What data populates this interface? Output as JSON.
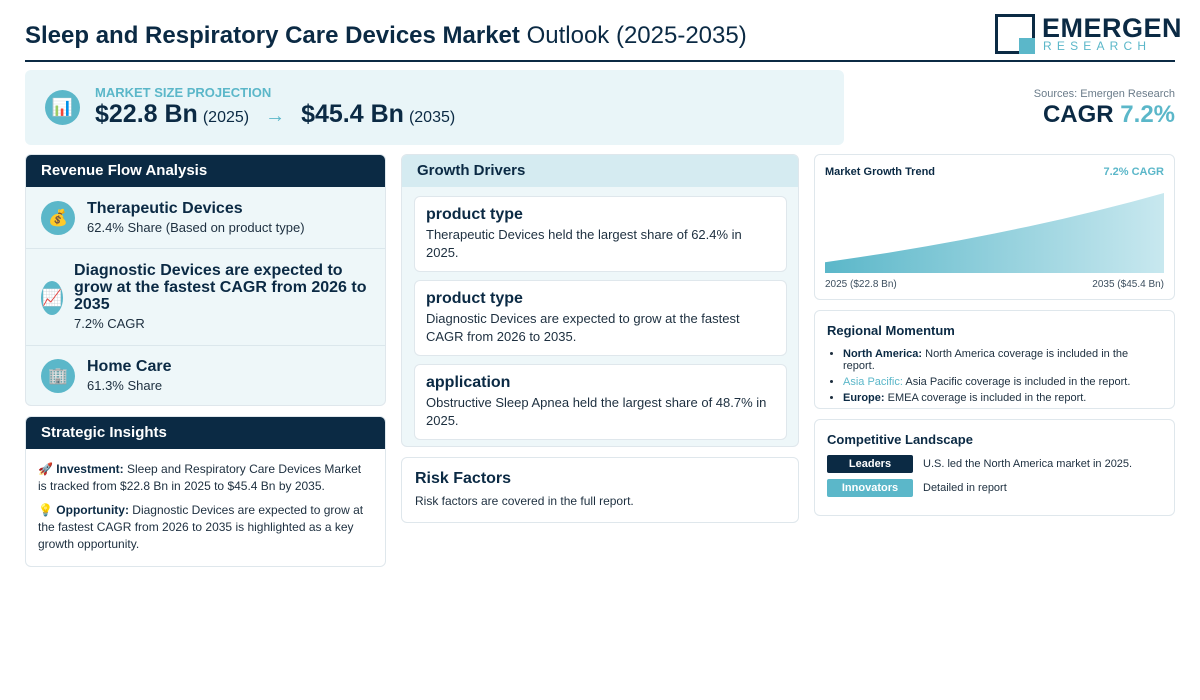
{
  "header": {
    "title_bold": "Sleep and Respiratory Care Devices Market",
    "title_light": "Outlook (2025-2035)",
    "logo_main": "EMERGEN",
    "logo_sub": "RESEARCH"
  },
  "market_size": {
    "label": "MARKET SIZE PROJECTION",
    "start_value": "$22.8 Bn",
    "start_year": "(2025)",
    "arrow": "→",
    "end_value": "$45.4 Bn",
    "end_year": "(2035)",
    "icon": "bar-chart-icon"
  },
  "cagr": {
    "sources": "Sources: Emergen Research",
    "label": "CAGR",
    "value": "7.2%"
  },
  "revenue": {
    "title": "Revenue Flow Analysis",
    "items": [
      {
        "icon": "money-bag-icon",
        "glyph": "💰",
        "title": "Therapeutic Devices",
        "sub": "62.4% Share (Based on product type)"
      },
      {
        "icon": "chart-up-icon",
        "glyph": "📈",
        "title": "Diagnostic Devices are expected to grow at the fastest CAGR from 2026 to 2035",
        "sub": "7.2% CAGR"
      },
      {
        "icon": "building-icon",
        "glyph": "🏢",
        "title": "Home Care",
        "sub": "61.3% Share"
      }
    ]
  },
  "strategic": {
    "title": "Strategic Insights",
    "investment_label": "Investment:",
    "investment_text": "Sleep and Respiratory Care Devices Market is tracked from $22.8 Bn in 2025 to $45.4 Bn by 2035.",
    "opportunity_label": "Opportunity:",
    "opportunity_text": "Diagnostic Devices are expected to grow at the fastest CAGR from 2026 to 2035 is highlighted as a key growth opportunity."
  },
  "drivers": {
    "title": "Growth Drivers",
    "cards": [
      {
        "title": "product type",
        "text": "Therapeutic Devices held the largest share of 62.4% in 2025."
      },
      {
        "title": "product type",
        "text": "Diagnostic Devices are expected to grow at the fastest CAGR from 2026 to 2035."
      },
      {
        "title": "application",
        "text": "Obstructive Sleep Apnea held the largest share of 48.7% in 2025."
      }
    ]
  },
  "risk": {
    "title": "Risk Factors",
    "text": "Risk factors are covered in the full report."
  },
  "trend": {
    "title": "Market Growth Trend",
    "cagr_label": "7.2% CAGR",
    "start_label": "2025 ($22.8 Bn)",
    "end_label": "2035 ($45.4 Bn)"
  },
  "regional": {
    "title": "Regional Momentum",
    "items": [
      {
        "region": "North America:",
        "text": "North America coverage is included in the report."
      },
      {
        "region": "Asia Pacific:",
        "text": "Asia Pacific coverage is included in the report."
      },
      {
        "region": "Europe:",
        "text": "EMEA coverage is included in the report."
      }
    ]
  },
  "competitive": {
    "title": "Competitive Landscape",
    "rows": [
      {
        "tag": "Leaders",
        "text": "U.S. led the North America market in 2025."
      },
      {
        "tag": "Innovators",
        "text": "Detailed in report"
      }
    ]
  },
  "chart_data": {
    "type": "area",
    "x": [
      2025,
      2035
    ],
    "values": [
      22.8,
      45.4
    ],
    "title": "Market Growth Trend",
    "xlabel": "",
    "ylabel": "",
    "grid": false,
    "legend": "none"
  },
  "colors": {
    "navy": "#0b2a44",
    "accent": "#5bb7c9",
    "panel_bg": "#eef7f9"
  }
}
